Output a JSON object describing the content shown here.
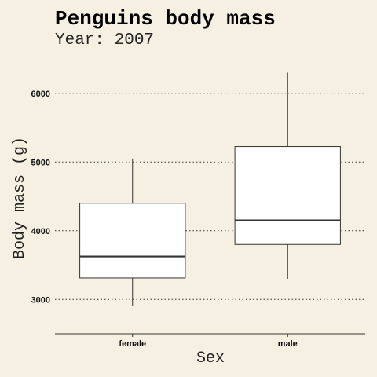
{
  "chart_data": {
    "type": "boxplot",
    "title": "Penguins body mass",
    "subtitle": "Year: 2007",
    "xlabel": "Sex",
    "ylabel": "Body mass (g)",
    "ylim": [
      2500,
      6500
    ],
    "yticks": [
      3000,
      4000,
      5000,
      6000
    ],
    "grid": "horizontal-dotted",
    "categories": [
      "female",
      "male"
    ],
    "boxes": [
      {
        "category": "female",
        "whisker_low": 2900,
        "q1": 3312,
        "median": 3625,
        "q3": 4400,
        "whisker_high": 5050
      },
      {
        "category": "male",
        "whisker_low": 3300,
        "q1": 3800,
        "median": 4150,
        "q3": 5225,
        "whisker_high": 6300
      }
    ],
    "colors": {
      "background": "#f6f0e3",
      "box_fill": "#ffffff",
      "stroke": "#333333",
      "grid": "#333333"
    }
  }
}
